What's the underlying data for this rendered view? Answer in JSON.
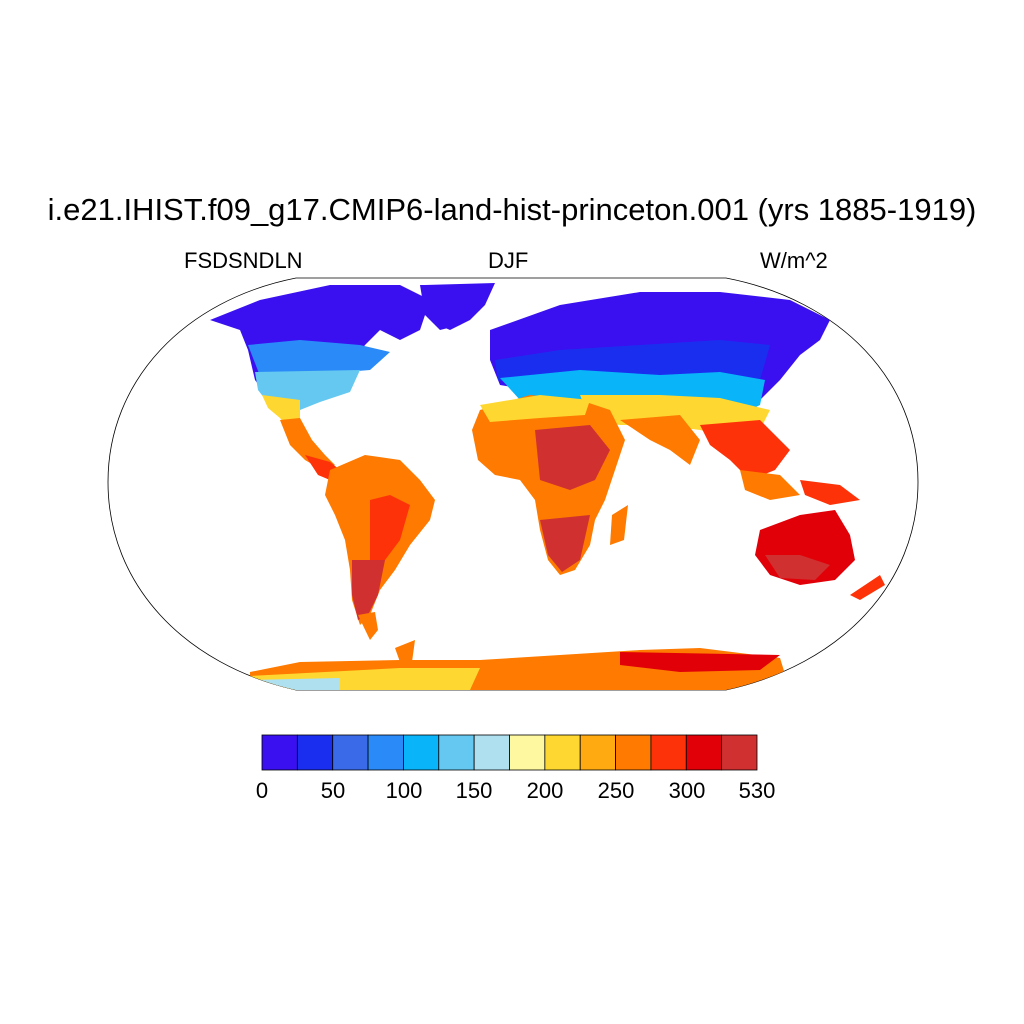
{
  "title": "i.e21.IHIST.f09_g17.CMIP6-land-hist-princeton.001 (yrs 1885-1919)",
  "left_label": "FSDSNDLN",
  "center_label": "DJF",
  "right_label": "W/m^2",
  "colorbar": {
    "colors": [
      "#3a10f0",
      "#1a2ef0",
      "#3a6ae8",
      "#2a8af8",
      "#0ab4f8",
      "#64c8f0",
      "#aee0f0",
      "#fef8a0",
      "#fed830",
      "#feaa10",
      "#fe7a00",
      "#fe3208",
      "#e20008",
      "#d03030"
    ],
    "tick_labels": [
      "0",
      "50",
      "100",
      "150",
      "200",
      "250",
      "300",
      "530"
    ]
  }
}
